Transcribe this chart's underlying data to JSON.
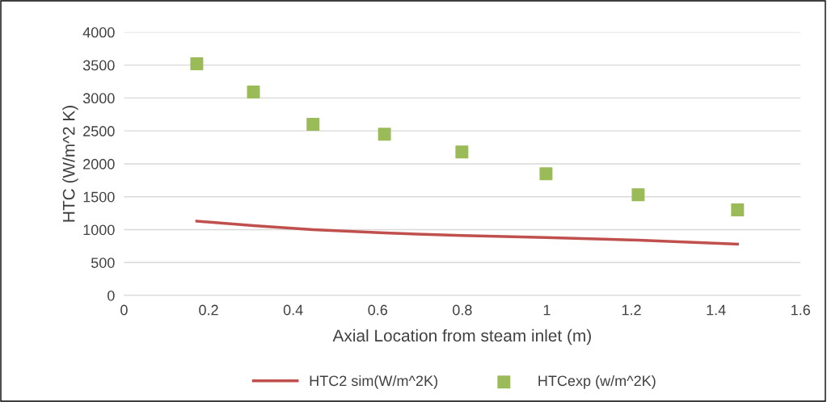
{
  "chart_data": {
    "type": "scatter",
    "xlabel": "Axial Location from steam inlet (m)",
    "ylabel": "HTC (W/m^2 K)",
    "xlim": [
      0,
      1.6
    ],
    "xticks": [
      0,
      0.2,
      0.4,
      0.6,
      0.8,
      1,
      1.2,
      1.4,
      1.6
    ],
    "ylim": [
      0,
      4000
    ],
    "yticks": [
      0,
      500,
      1000,
      1500,
      2000,
      2500,
      3000,
      3500,
      4000
    ],
    "grid": "y",
    "legend": "bottom",
    "series": [
      {
        "name": "HTC2 sim(W/m^2K)",
        "type": "line",
        "color": "#c0504d",
        "marker": "none",
        "x": [
          0.172,
          0.306,
          0.447,
          0.616,
          0.799,
          0.998,
          1.216,
          1.451
        ],
        "values": [
          1130,
          1060,
          1000,
          950,
          910,
          880,
          840,
          780
        ]
      },
      {
        "name": "HTCexp (w/m^2K)",
        "color": "#9bbb59",
        "marker": "square",
        "x": [
          0.172,
          0.306,
          0.447,
          0.616,
          0.799,
          0.998,
          1.216,
          1.451
        ],
        "values": [
          3520,
          3090,
          2600,
          2450,
          2180,
          1850,
          1530,
          1300
        ]
      }
    ]
  }
}
